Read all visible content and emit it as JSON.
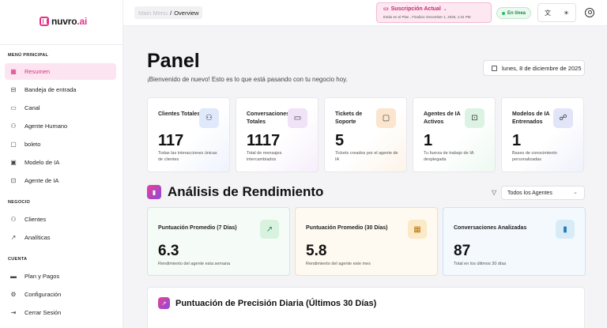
{
  "app": {
    "logo": "nuvro",
    "logo_suffix": ".ai"
  },
  "sidebar": {
    "sections": [
      {
        "title": "MENÚ PRINCIPAL",
        "items": [
          {
            "label": "Resumen",
            "icon": "grid-icon",
            "active": true
          },
          {
            "label": "Bandeja de entrada",
            "icon": "inbox-icon"
          },
          {
            "label": "Canal",
            "icon": "channel-icon"
          },
          {
            "label": "Agente Humano",
            "icon": "users-icon"
          },
          {
            "label": "boleto",
            "icon": "ticket-icon"
          },
          {
            "label": "Modelo de IA",
            "icon": "model-icon"
          },
          {
            "label": "Agente de IA",
            "icon": "bot-icon"
          }
        ]
      },
      {
        "title": "NEGOCIO",
        "items": [
          {
            "label": "Clientes",
            "icon": "clients-icon"
          },
          {
            "label": "Analíticas",
            "icon": "trend-icon"
          }
        ]
      },
      {
        "title": "CUENTA",
        "items": [
          {
            "label": "Plan y Pagos",
            "icon": "card-icon"
          },
          {
            "label": "Configuración",
            "icon": "gear-icon"
          },
          {
            "label": "Cerrar Sesión",
            "icon": "logout-icon"
          }
        ]
      }
    ]
  },
  "topbar": {
    "breadcrumb_parent": "Main Menu",
    "breadcrumb_sep": "/",
    "breadcrumb_current": "Overview",
    "subscription_title": "Suscripción Actual",
    "subscription_detail": "Estás en el Plan , Finaliza: December 1, 2025, 1:31 PM",
    "status": "En línea"
  },
  "main": {
    "title": "Panel",
    "subtitle": "¡Bienvenido de nuevo! Esto es lo que está pasando con tu negocio hoy.",
    "date": "lunes, 8 de diciembre de 2025",
    "stats": [
      {
        "title": "Clientes Totales",
        "value": "117",
        "desc": "Todas las interacciones únicas de clientes",
        "icon": "users-icon",
        "color": "#e3edfb"
      },
      {
        "title": "Conversaciones Totales",
        "value": "1117",
        "desc": "Total de mensajes intercambiados",
        "icon": "chat-icon",
        "color": "#f2e6f8"
      },
      {
        "title": "Tickets de Soporte",
        "value": "5",
        "desc": "Tickets creados por el agente de IA",
        "icon": "ticket-icon",
        "color": "#fcebd9"
      },
      {
        "title": "Agentes de IA Activos",
        "value": "1",
        "desc": "Tu fuerza de trabajo de IA desplegada",
        "icon": "bot-icon",
        "color": "#e2f5e8"
      },
      {
        "title": "Modelos de IA Entrenados",
        "value": "1",
        "desc": "Bases de conocimiento personalizadas",
        "icon": "brain-icon",
        "color": "#e6e8f8"
      }
    ],
    "performance": {
      "title": "Análisis de Rendimiento",
      "agent_filter": "Todos los Agentes",
      "cards": [
        {
          "title": "Puntuación Promedio (7 Días)",
          "value": "6.3",
          "desc": "Rendimiento del agente esta semana",
          "icon": "trend-up-icon",
          "color": "#ddf3e3"
        },
        {
          "title": "Puntuación Promedio (30 Días)",
          "value": "5.8",
          "desc": "Rendimiento del agente este mes",
          "icon": "calendar-icon",
          "color": "#fbeccf"
        },
        {
          "title": "Conversaciones Analizadas",
          "value": "87",
          "desc": "Total en los últimos 30 días",
          "icon": "bar-chart-icon",
          "color": "#dcedf8"
        }
      ]
    },
    "daily_title": "Puntuación de Precisión Diaria (Últimos 30 Días)"
  }
}
